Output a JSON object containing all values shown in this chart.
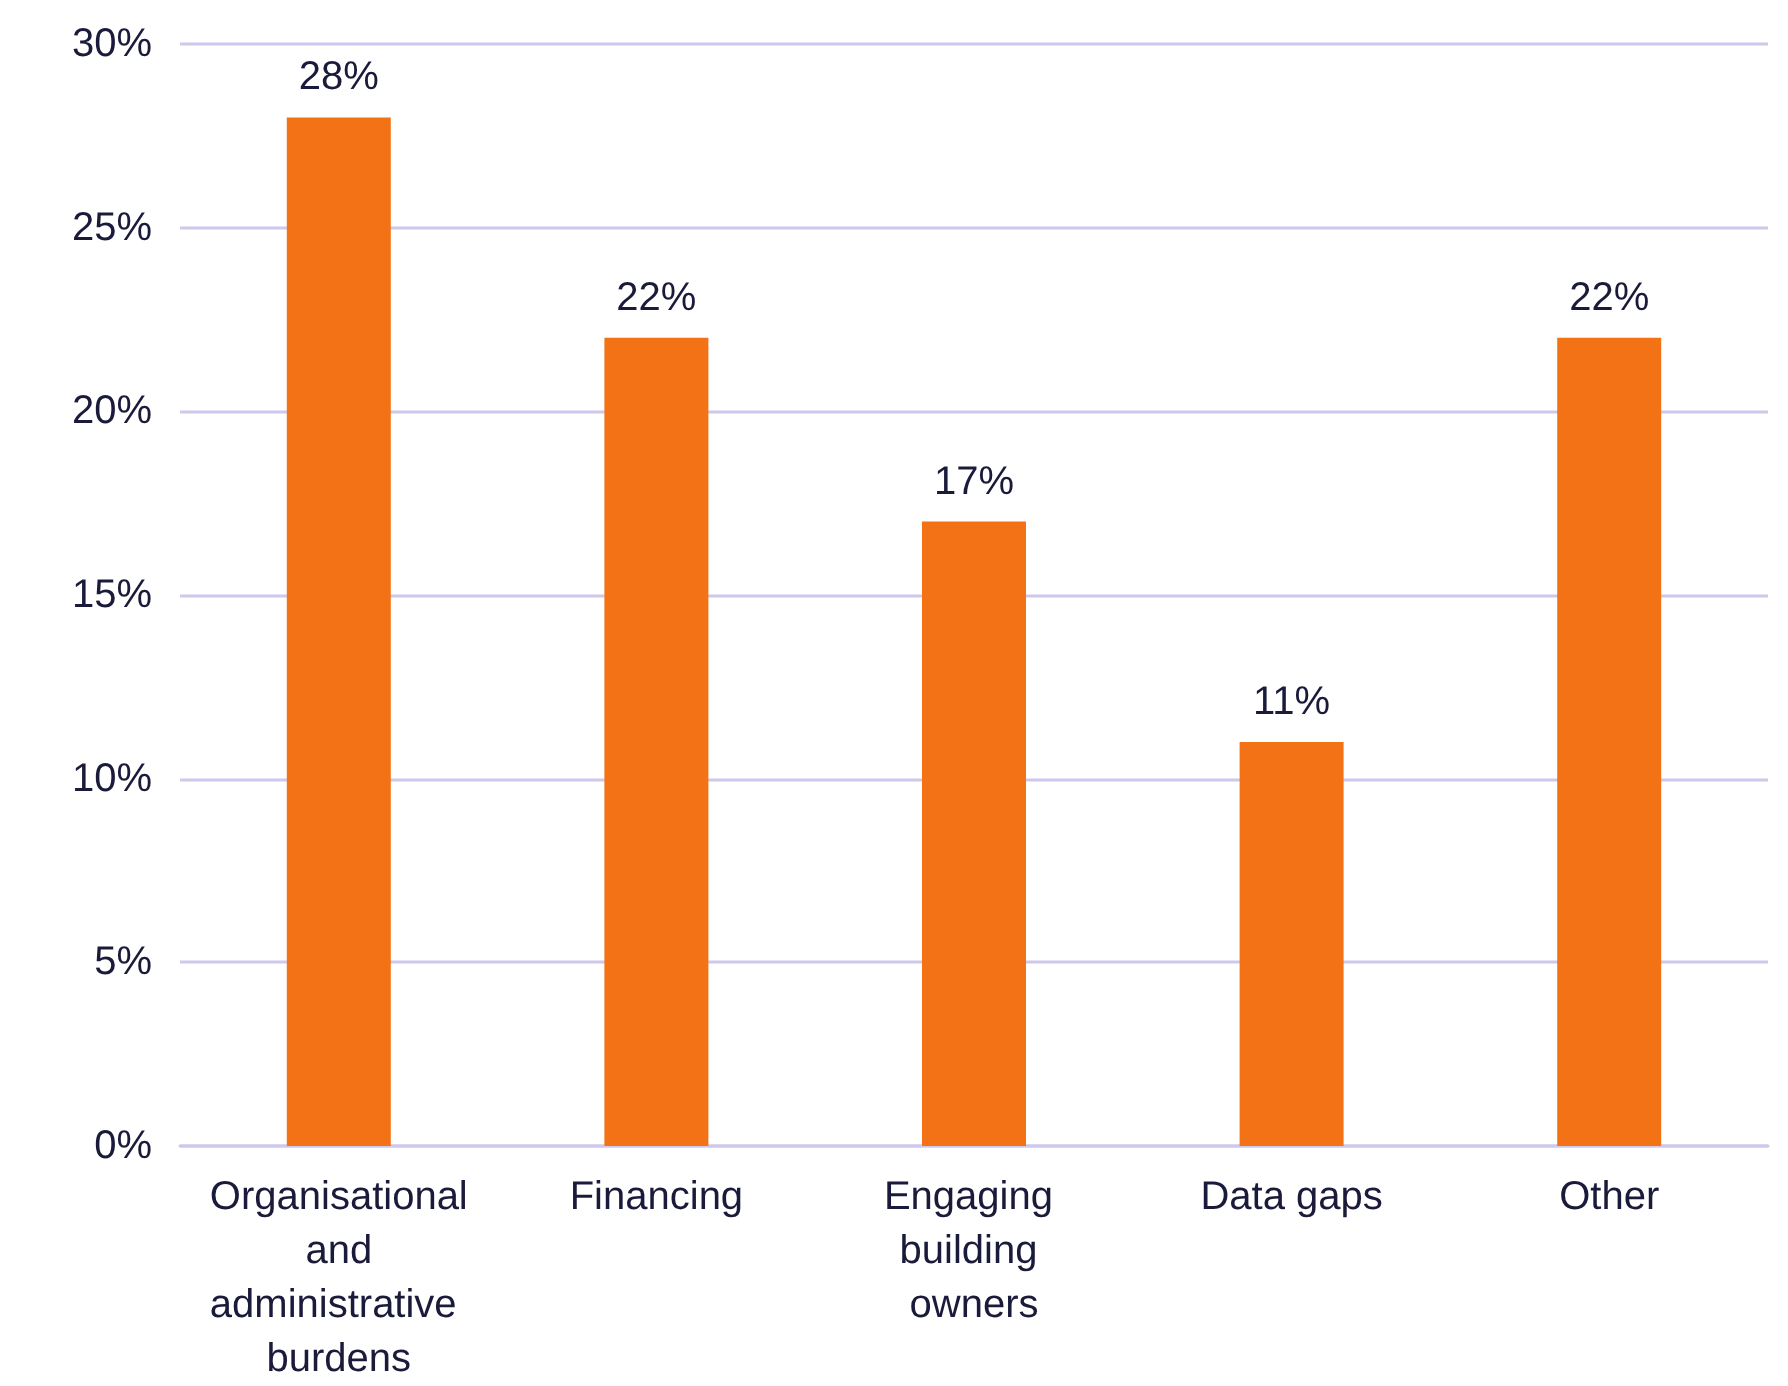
{
  "chart_data": {
    "type": "bar",
    "categories": [
      "Organisational and administrative burdens",
      "Financing",
      "Engaging building owners",
      "Data gaps",
      "Other"
    ],
    "values": [
      28,
      22,
      17,
      11,
      22
    ],
    "color": "#f47216",
    "value_labels": [
      "28%",
      "22%",
      "17%",
      "11%",
      "22%"
    ],
    "ylim": [
      0,
      30
    ],
    "yticks": [
      {
        "value": 0,
        "label": "0%"
      },
      {
        "value": 5,
        "label": "5%"
      },
      {
        "value": 10,
        "label": "10%"
      },
      {
        "value": 15,
        "label": "15%"
      },
      {
        "value": 20,
        "label": "20%"
      },
      {
        "value": 25,
        "label": "25%"
      },
      {
        "value": 30,
        "label": "30%"
      }
    ],
    "grid": "y"
  }
}
